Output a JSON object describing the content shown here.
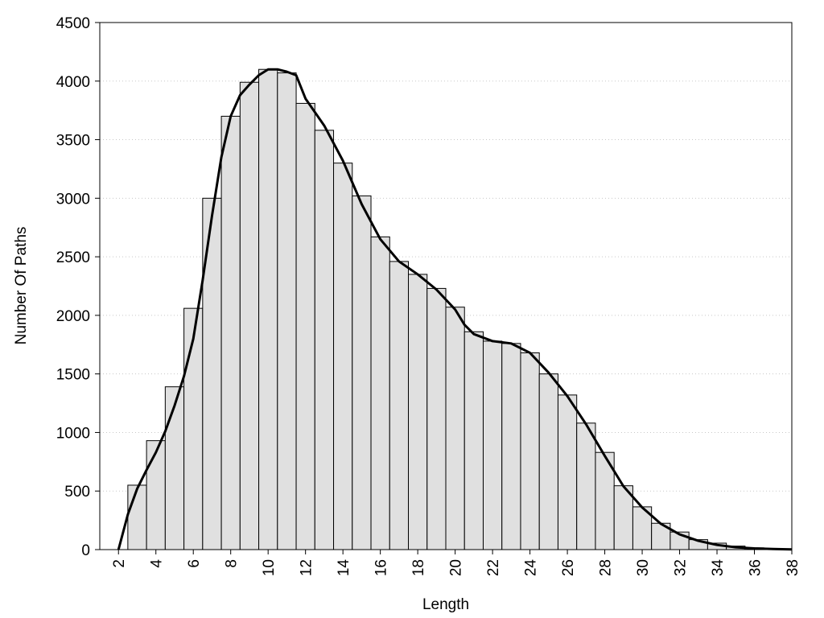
{
  "chart_data": {
    "type": "histogram",
    "xlabel": "Length",
    "ylabel": "Number Of Paths",
    "bins": [
      2.5,
      3.5,
      4.5,
      5.5,
      6.5,
      7.5,
      8.5,
      9.5,
      10.5,
      11.5,
      12.5,
      13.5,
      14.5,
      15.5,
      16.5,
      17.5,
      18.5,
      19.5,
      20.5,
      21.5,
      22.5,
      23.5,
      24.5,
      25.5,
      26.5,
      27.5,
      28.5,
      29.5,
      30.5,
      31.5,
      32.5,
      33.5,
      34.5,
      35.5,
      36.5,
      37.5
    ],
    "values": [
      550,
      930,
      1390,
      2060,
      3000,
      3700,
      3990,
      4100,
      4070,
      3810,
      3580,
      3300,
      3020,
      2670,
      2460,
      2350,
      2230,
      2070,
      1860,
      1780,
      1760,
      1680,
      1500,
      1320,
      1080,
      830,
      545,
      365,
      225,
      150,
      85,
      55,
      30,
      15,
      8
    ],
    "color": "#e0e0e0",
    "line": {
      "color": "#000000",
      "x": [
        2,
        2.5,
        3,
        3.5,
        4,
        4.5,
        5,
        5.5,
        6,
        6.5,
        7,
        7.5,
        8,
        8.5,
        9,
        9.5,
        10,
        10.5,
        11,
        11.5,
        12,
        13,
        14,
        15,
        16,
        17,
        18,
        19,
        20,
        20.5,
        21,
        22,
        23,
        24,
        25,
        26,
        27,
        28,
        29,
        30,
        31,
        32,
        33,
        34,
        35,
        36,
        37,
        38
      ],
      "values": [
        0,
        300,
        520,
        680,
        830,
        1010,
        1230,
        1480,
        1800,
        2300,
        2850,
        3350,
        3700,
        3880,
        3970,
        4050,
        4100,
        4100,
        4080,
        4050,
        3850,
        3620,
        3320,
        2950,
        2650,
        2460,
        2350,
        2220,
        2050,
        1920,
        1840,
        1780,
        1760,
        1680,
        1510,
        1310,
        1070,
        800,
        540,
        360,
        220,
        130,
        75,
        40,
        20,
        10,
        5,
        2
      ]
    },
    "xlim": [
      1,
      38
    ],
    "ylim": [
      0,
      4500
    ],
    "xticks": [
      2,
      4,
      6,
      8,
      10,
      12,
      14,
      16,
      18,
      20,
      22,
      24,
      26,
      28,
      30,
      32,
      34,
      36,
      38
    ],
    "yticks": [
      0,
      500,
      1000,
      1500,
      2000,
      2500,
      3000,
      3500,
      4000,
      4500
    ],
    "grid": true
  }
}
